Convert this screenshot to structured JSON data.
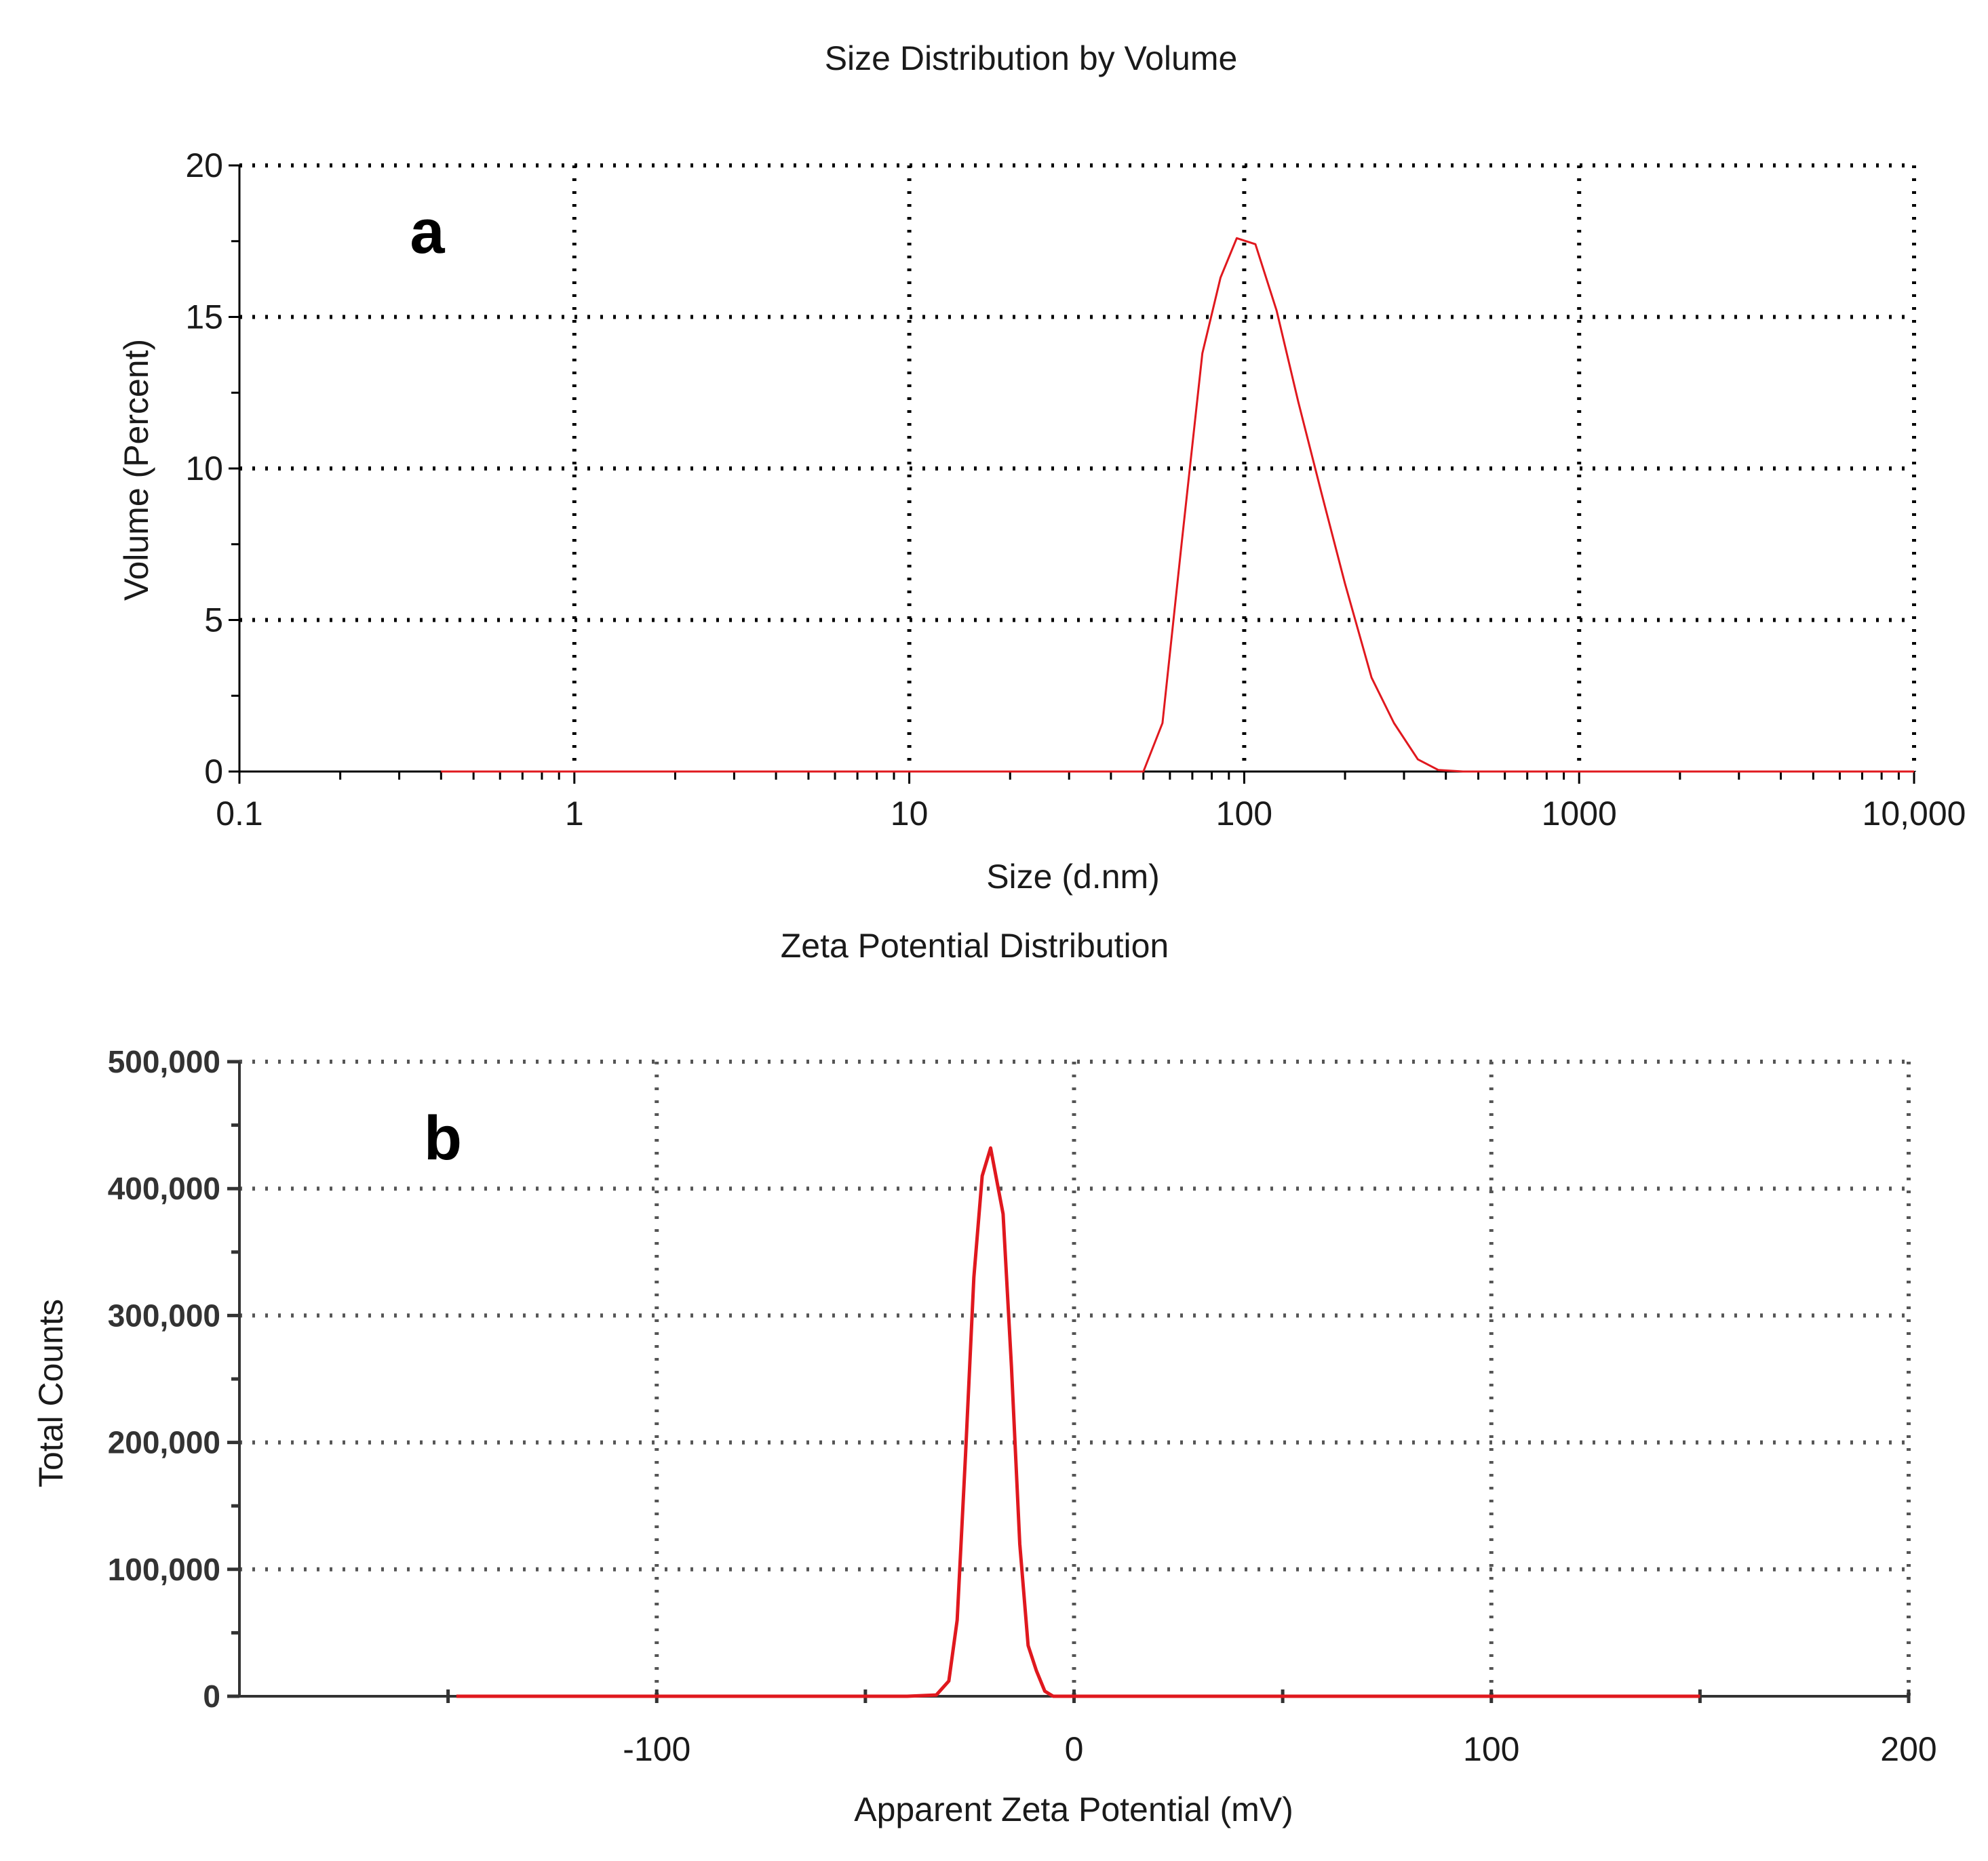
{
  "chart_data": [
    {
      "panel_label": "a",
      "type": "line",
      "title": "Size Distribution by Volume",
      "xlabel": "Size (d.nm)",
      "ylabel": "Volume (Percent)",
      "x_scale": "log",
      "xlim": [
        0.1,
        10000
      ],
      "ylim": [
        0,
        20
      ],
      "grid": true,
      "x_ticks": [
        0.1,
        1,
        10,
        100,
        1000,
        10000
      ],
      "x_tick_labels": [
        "0.1",
        "1",
        "10",
        "100",
        "1000",
        "10,000"
      ],
      "y_ticks": [
        0,
        5,
        10,
        15,
        20
      ],
      "y_tick_labels": [
        "0",
        "5",
        "10",
        "15",
        "20"
      ],
      "y_minor_step": 2.5,
      "series": [
        {
          "name": "Volume",
          "color": "#e0181e",
          "x": [
            0.4,
            1,
            10,
            30,
            50,
            57,
            65,
            75,
            85,
            95,
            108,
            125,
            145,
            170,
            200,
            240,
            280,
            330,
            380,
            450,
            1000,
            10000
          ],
          "y": [
            0,
            0,
            0,
            0,
            0,
            1.6,
            7.5,
            13.8,
            16.3,
            17.6,
            17.4,
            15.2,
            12.2,
            9.2,
            6.2,
            3.1,
            1.6,
            0.4,
            0.05,
            0,
            0,
            0
          ]
        }
      ]
    },
    {
      "panel_label": "b",
      "type": "line",
      "title": "Zeta Potential Distribution",
      "xlabel": "Apparent Zeta Potential (mV)",
      "ylabel": "Total Counts",
      "x_scale": "linear",
      "xlim": [
        -200,
        200
      ],
      "ylim": [
        0,
        500000
      ],
      "grid": true,
      "x_ticks": [
        -100,
        0,
        100,
        200
      ],
      "x_tick_labels": [
        "-100",
        "0",
        "100",
        "200"
      ],
      "x_grid": [
        -100,
        0,
        100,
        200
      ],
      "x_minor_ticks": [
        -150,
        -50,
        50,
        150
      ],
      "y_ticks": [
        0,
        100000,
        200000,
        300000,
        400000,
        500000
      ],
      "y_tick_labels": [
        "0",
        "100,000",
        "200,000",
        "300,000",
        "400,000",
        "500,000"
      ],
      "y_minor_step": 50000,
      "series": [
        {
          "name": "Total Counts",
          "color": "#e0181e",
          "x": [
            -148,
            -40,
            -33,
            -30,
            -28,
            -26,
            -24,
            -22,
            -20,
            -17,
            -15,
            -13,
            -11,
            -9,
            -7,
            -5,
            0,
            150
          ],
          "y": [
            0,
            0,
            1000,
            12000,
            60000,
            190000,
            330000,
            410000,
            432000,
            380000,
            260000,
            120000,
            40000,
            20000,
            4000,
            0,
            0,
            0
          ]
        }
      ]
    }
  ]
}
